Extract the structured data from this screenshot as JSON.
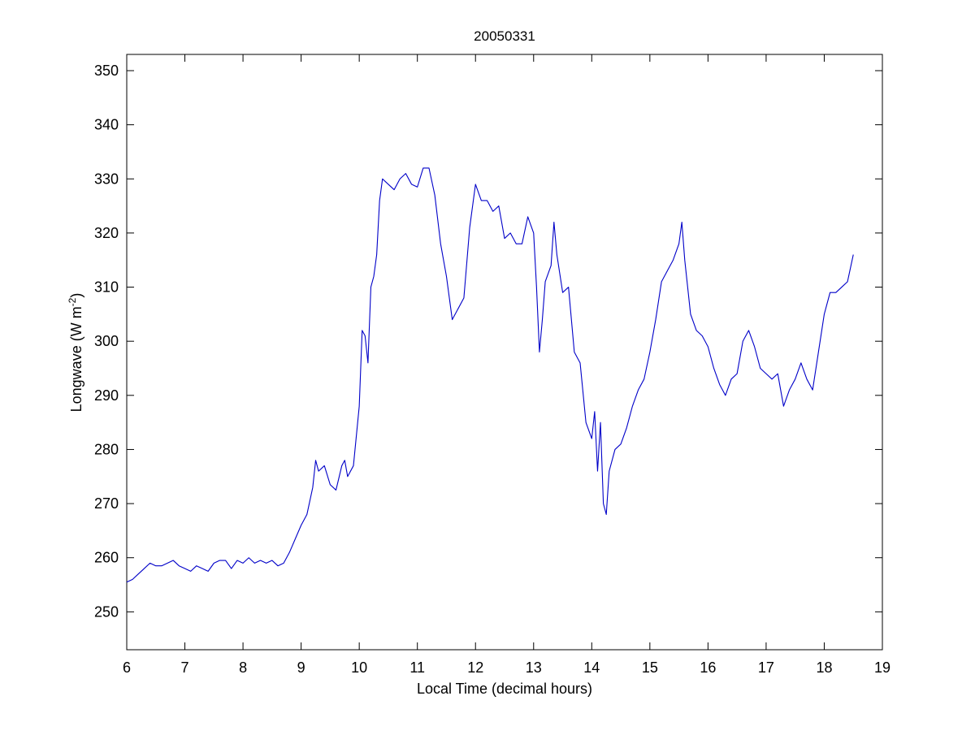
{
  "chart_data": {
    "type": "line",
    "title": "20050331",
    "xlabel": "Local Time (decimal hours)",
    "ylabel": {
      "main": "Longwave (W m",
      "superscript": "-2",
      "close": ")"
    },
    "xlim": [
      6,
      19
    ],
    "ylim": [
      243,
      353
    ],
    "x_ticks": [
      6,
      7,
      8,
      9,
      10,
      11,
      12,
      13,
      14,
      15,
      16,
      17,
      18,
      19
    ],
    "y_ticks": [
      250,
      260,
      270,
      280,
      290,
      300,
      310,
      320,
      330,
      340,
      350
    ],
    "grid": false,
    "line_color": "#0000c8",
    "series": [
      {
        "x": [
          6.0,
          6.1,
          6.2,
          6.3,
          6.4,
          6.5,
          6.6,
          6.7,
          6.8,
          6.9,
          7.0,
          7.1,
          7.2,
          7.3,
          7.4,
          7.5,
          7.6,
          7.7,
          7.8,
          7.9,
          8.0,
          8.1,
          8.2,
          8.3,
          8.4,
          8.5,
          8.6,
          8.7,
          8.8,
          8.9,
          9.0,
          9.1,
          9.2,
          9.25,
          9.3,
          9.4,
          9.5,
          9.6,
          9.7,
          9.75,
          9.8,
          9.9,
          10.0,
          10.05,
          10.1,
          10.15,
          10.2,
          10.25,
          10.3,
          10.35,
          10.4,
          10.5,
          10.6,
          10.7,
          10.8,
          10.9,
          11.0,
          11.1,
          11.2,
          11.3,
          11.4,
          11.5,
          11.6,
          11.7,
          11.8,
          11.9,
          12.0,
          12.1,
          12.2,
          12.3,
          12.4,
          12.5,
          12.6,
          12.7,
          12.8,
          12.9,
          13.0,
          13.05,
          13.1,
          13.15,
          13.2,
          13.3,
          13.35,
          13.4,
          13.5,
          13.6,
          13.7,
          13.8,
          13.9,
          14.0,
          14.05,
          14.1,
          14.15,
          14.2,
          14.25,
          14.3,
          14.4,
          14.5,
          14.6,
          14.7,
          14.8,
          14.9,
          15.0,
          15.1,
          15.2,
          15.3,
          15.4,
          15.5,
          15.55,
          15.6,
          15.7,
          15.8,
          15.9,
          16.0,
          16.1,
          16.2,
          16.3,
          16.4,
          16.5,
          16.6,
          16.7,
          16.8,
          16.9,
          17.0,
          17.1,
          17.2,
          17.3,
          17.4,
          17.5,
          17.6,
          17.7,
          17.8,
          17.9,
          18.0,
          18.1,
          18.2,
          18.3,
          18.4,
          18.5
        ],
        "values": [
          255.5,
          256.0,
          257.0,
          258.0,
          259.0,
          258.5,
          258.5,
          259.0,
          259.5,
          258.5,
          258.0,
          257.5,
          258.5,
          258.0,
          257.5,
          259.0,
          259.5,
          259.5,
          258.0,
          259.5,
          259.0,
          260.0,
          259.0,
          259.5,
          259.0,
          259.5,
          258.5,
          259.0,
          261.0,
          263.5,
          266.0,
          268.0,
          273.0,
          278.0,
          276.0,
          277.0,
          273.5,
          272.5,
          277.0,
          278.0,
          275.0,
          277.0,
          288.0,
          302.0,
          301.0,
          296.0,
          310.0,
          312.0,
          316.0,
          326.0,
          330.0,
          329.0,
          328.0,
          330.0,
          331.0,
          329.0,
          328.5,
          332.0,
          332.0,
          327.0,
          318.0,
          312.0,
          304.0,
          306.0,
          308.0,
          321.0,
          329.0,
          326.0,
          326.0,
          324.0,
          325.0,
          319.0,
          320.0,
          318.0,
          318.0,
          323.0,
          320.0,
          310.0,
          298.0,
          304.0,
          311.0,
          314.0,
          322.0,
          316.0,
          309.0,
          310.0,
          298.0,
          296.0,
          285.0,
          282.0,
          287.0,
          276.0,
          285.0,
          270.0,
          268.0,
          276.0,
          280.0,
          281.0,
          284.0,
          288.0,
          291.0,
          293.0,
          298.0,
          304.0,
          311.0,
          313.0,
          315.0,
          318.0,
          322.0,
          315.0,
          305.0,
          302.0,
          301.0,
          299.0,
          295.0,
          292.0,
          290.0,
          293.0,
          294.0,
          300.0,
          302.0,
          299.0,
          295.0,
          294.0,
          293.0,
          294.0,
          288.0,
          291.0,
          293.0,
          296.0,
          293.0,
          291.0,
          298.0,
          305.0,
          309.0,
          309.0,
          310.0,
          311.0,
          316.0
        ]
      }
    ]
  }
}
